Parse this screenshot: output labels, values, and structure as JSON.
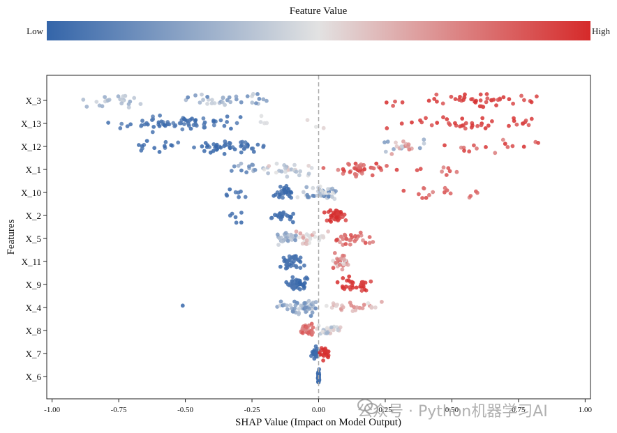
{
  "colorbar": {
    "title": "Feature Value",
    "low_label": "Low",
    "high_label": "High",
    "colors": {
      "low": "#3465a9",
      "mid": "#e2e2e2",
      "high": "#d62a2a"
    }
  },
  "watermark": {
    "text": "公众号 · Python机器学习AI"
  },
  "chart_data": {
    "type": "scatter",
    "subtype": "shap-beeswarm",
    "xlabel": "SHAP Value (Impact on Model Output)",
    "ylabel": "Features",
    "xlim": [
      -1.02,
      1.02
    ],
    "xticks": [
      -1.0,
      -0.75,
      -0.5,
      -0.25,
      0.0,
      0.25,
      0.5,
      0.75,
      1.0
    ],
    "xtick_labels": [
      "-1.00",
      "-0.75",
      "-0.50",
      "-0.25",
      "0.00",
      "0.25",
      "0.50",
      "0.75",
      "1.00"
    ],
    "zero_line": {
      "x": 0.0,
      "style": "dashed",
      "color": "#aaaaaa"
    },
    "grid": false,
    "features": [
      {
        "name": "X_3",
        "groups": [
          {
            "min": -0.93,
            "max": -0.6,
            "n": 24,
            "color_min": 0.25,
            "color_max": 0.45
          },
          {
            "min": -0.56,
            "max": -0.15,
            "n": 34,
            "color_min": 0.05,
            "color_max": 0.45
          },
          {
            "min": 0.24,
            "max": 0.92,
            "n": 46,
            "color_min": 0.88,
            "color_max": 1.0
          }
        ]
      },
      {
        "name": "X_13",
        "groups": [
          {
            "min": -0.8,
            "max": -0.27,
            "n": 70,
            "color_min": 0.0,
            "color_max": 0.12
          },
          {
            "min": -0.23,
            "max": -0.18,
            "n": 4,
            "color_min": 0.45,
            "color_max": 0.55
          },
          {
            "min": -0.05,
            "max": 0.02,
            "n": 3,
            "color_min": 0.45,
            "color_max": 0.55
          },
          {
            "min": 0.18,
            "max": 0.95,
            "n": 40,
            "color_min": 0.88,
            "color_max": 1.0
          }
        ]
      },
      {
        "name": "X_12",
        "groups": [
          {
            "min": -0.73,
            "max": -0.5,
            "n": 14,
            "color_min": 0.0,
            "color_max": 0.1
          },
          {
            "min": -0.48,
            "max": -0.2,
            "n": 50,
            "color_min": 0.0,
            "color_max": 0.1
          },
          {
            "min": 0.22,
            "max": 0.43,
            "n": 25,
            "color_min": 0.2,
            "color_max": 0.8
          },
          {
            "min": 0.45,
            "max": 0.85,
            "n": 16,
            "color_min": 0.75,
            "color_max": 1.0
          }
        ]
      },
      {
        "name": "X_1",
        "groups": [
          {
            "min": -0.35,
            "max": -0.2,
            "n": 14,
            "color_min": 0.05,
            "color_max": 0.35
          },
          {
            "min": -0.22,
            "max": 0.0,
            "n": 28,
            "color_min": 0.3,
            "color_max": 0.6
          },
          {
            "min": 0.0,
            "max": 0.3,
            "n": 40,
            "color_min": 0.75,
            "color_max": 1.0
          },
          {
            "min": 0.36,
            "max": 0.57,
            "n": 8,
            "color_min": 0.75,
            "color_max": 0.95
          }
        ]
      },
      {
        "name": "X_10",
        "groups": [
          {
            "min": -0.36,
            "max": -0.26,
            "n": 8,
            "color_min": 0.0,
            "color_max": 0.1
          },
          {
            "min": -0.17,
            "max": -0.09,
            "n": 30,
            "color_min": 0.0,
            "color_max": 0.08
          },
          {
            "min": -0.09,
            "max": 0.09,
            "n": 40,
            "color_min": 0.1,
            "color_max": 0.5
          },
          {
            "min": 0.28,
            "max": 0.67,
            "n": 16,
            "color_min": 0.75,
            "color_max": 0.95
          }
        ]
      },
      {
        "name": "X_2",
        "groups": [
          {
            "min": -0.35,
            "max": -0.27,
            "n": 6,
            "color_min": 0.0,
            "color_max": 0.05
          },
          {
            "min": -0.2,
            "max": -0.07,
            "n": 22,
            "color_min": 0.0,
            "color_max": 0.08
          },
          {
            "min": 0.02,
            "max": 0.11,
            "n": 40,
            "color_min": 0.92,
            "color_max": 1.0
          }
        ]
      },
      {
        "name": "X_5",
        "groups": [
          {
            "min": -0.17,
            "max": -0.08,
            "n": 30,
            "color_min": 0.15,
            "color_max": 0.45
          },
          {
            "min": -0.1,
            "max": 0.04,
            "n": 30,
            "color_min": 0.45,
            "color_max": 0.7
          },
          {
            "min": 0.04,
            "max": 0.21,
            "n": 30,
            "color_min": 0.7,
            "color_max": 0.95
          }
        ]
      },
      {
        "name": "X_11",
        "groups": [
          {
            "min": -0.15,
            "max": -0.05,
            "n": 35,
            "color_min": 0.0,
            "color_max": 0.08
          },
          {
            "min": 0.04,
            "max": 0.12,
            "n": 30,
            "color_min": 0.45,
            "color_max": 0.95
          }
        ]
      },
      {
        "name": "X_9",
        "groups": [
          {
            "min": -0.13,
            "max": -0.02,
            "n": 45,
            "color_min": 0.0,
            "color_max": 0.08
          },
          {
            "min": 0.05,
            "max": 0.23,
            "n": 30,
            "color_min": 0.92,
            "color_max": 1.0
          }
        ]
      },
      {
        "name": "X_4",
        "groups": [
          {
            "min": -0.51,
            "max": -0.51,
            "n": 1,
            "color_min": 0.0,
            "color_max": 0.02
          },
          {
            "min": -0.18,
            "max": 0.03,
            "n": 45,
            "color_min": 0.1,
            "color_max": 0.45
          },
          {
            "min": 0.02,
            "max": 0.25,
            "n": 25,
            "color_min": 0.5,
            "color_max": 0.8
          }
        ]
      },
      {
        "name": "X_8",
        "groups": [
          {
            "min": -0.08,
            "max": -0.01,
            "n": 30,
            "color_min": 0.7,
            "color_max": 0.9
          },
          {
            "min": -0.01,
            "max": 0.09,
            "n": 30,
            "color_min": 0.3,
            "color_max": 0.6
          }
        ]
      },
      {
        "name": "X_7",
        "groups": [
          {
            "min": -0.03,
            "max": 0.0,
            "n": 22,
            "color_min": 0.0,
            "color_max": 0.05
          },
          {
            "min": 0.0,
            "max": 0.04,
            "n": 22,
            "color_min": 0.95,
            "color_max": 1.0
          }
        ]
      },
      {
        "name": "X_6",
        "groups": [
          {
            "min": -0.003,
            "max": 0.003,
            "n": 50,
            "color_min": 0.0,
            "color_max": 0.05
          }
        ]
      }
    ]
  }
}
